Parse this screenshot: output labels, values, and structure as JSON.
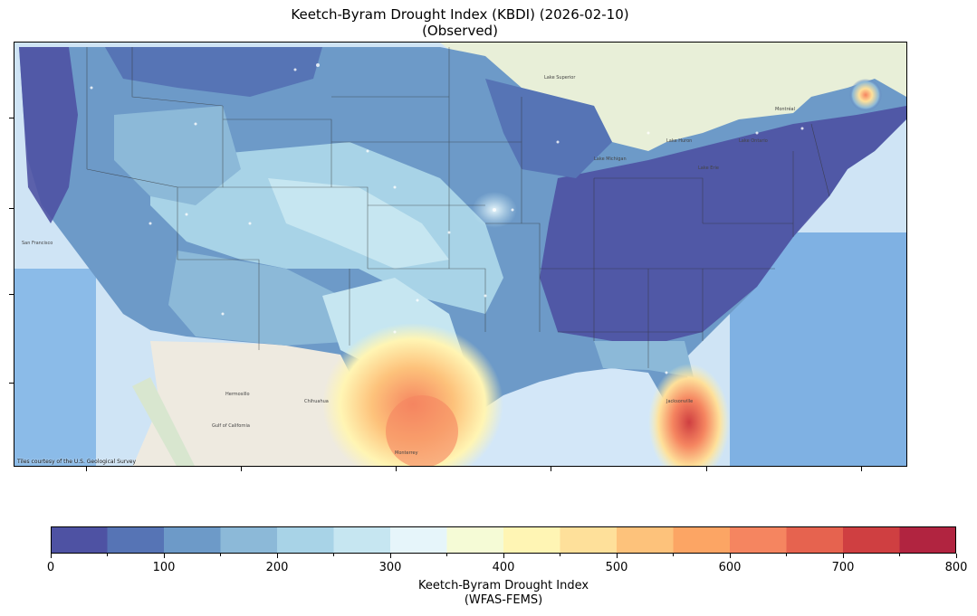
{
  "title": {
    "line1": "Keetch-Byram Drought Index (KBDI) (2026-02-10)",
    "line2": "(Observed)"
  },
  "map": {
    "attribution": "Tiles courtesy of the U.S. Geological Survey",
    "background_water": "#cfe4f5",
    "labels": {
      "san_francisco": "San Francisco",
      "chihuahua": "Chihuahua",
      "hermosillo": "Hermosillo",
      "gulf_of_california": "Gulf of California",
      "monterrey": "Monterrey",
      "lake_superior": "Lake Superior",
      "lake_huron": "Lake Huron",
      "lake_michigan": "Lake Michigan",
      "lake_ontario": "Lake Ontario",
      "lake_erie": "Lake Erie",
      "jacksonville": "Jacksonville",
      "montreal": "Montréal"
    }
  },
  "colorbar": {
    "label_line1": "Keetch-Byram Drought Index",
    "label_line2": "(WFAS-FEMS)",
    "min": 0,
    "max": 800,
    "tick_values": [
      0,
      100,
      200,
      300,
      400,
      500,
      600,
      700,
      800
    ],
    "tick_labels": [
      "0",
      "100",
      "200",
      "300",
      "400",
      "500",
      "600",
      "700",
      "800"
    ],
    "colors": [
      "#4e52a3",
      "#5674b5",
      "#6d9ac8",
      "#8cb9d8",
      "#a8d3e7",
      "#c6e6f1",
      "#e6f5fa",
      "#f5fbd6",
      "#fff5b4",
      "#fee09a",
      "#fdc27b",
      "#fca564",
      "#f58560",
      "#e6634f",
      "#cf3f41",
      "#b12440"
    ]
  }
}
